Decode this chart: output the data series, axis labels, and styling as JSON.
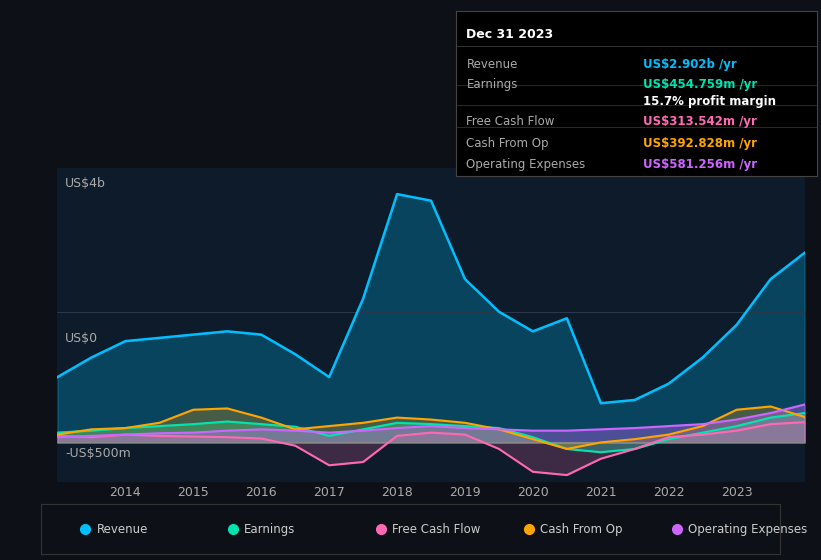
{
  "bg_color": "#0d1117",
  "plot_bg_color": "#0d1b2a",
  "grid_color": "#2a3a4a",
  "text_color": "#aaaaaa",
  "title_color": "#ffffff",
  "years": [
    2013,
    2013.5,
    2014,
    2014.5,
    2015,
    2015.5,
    2016,
    2016.5,
    2017,
    2017.5,
    2018,
    2018.5,
    2019,
    2019.5,
    2020,
    2020.5,
    2021,
    2021.5,
    2022,
    2022.5,
    2023,
    2023.5,
    2024
  ],
  "revenue": [
    1.0,
    1.3,
    1.55,
    1.6,
    1.65,
    1.7,
    1.65,
    1.35,
    1.0,
    2.2,
    3.8,
    3.7,
    2.5,
    2.0,
    1.7,
    1.9,
    0.6,
    0.65,
    0.9,
    1.3,
    1.8,
    2.5,
    2.902
  ],
  "earnings": [
    0.15,
    0.18,
    0.22,
    0.25,
    0.28,
    0.32,
    0.28,
    0.24,
    0.1,
    0.2,
    0.3,
    0.28,
    0.25,
    0.22,
    0.08,
    -0.1,
    -0.15,
    -0.1,
    0.05,
    0.15,
    0.25,
    0.38,
    0.45
  ],
  "free_cash_flow": [
    0.1,
    0.08,
    0.12,
    0.1,
    0.09,
    0.08,
    0.06,
    -0.05,
    -0.35,
    -0.3,
    0.1,
    0.15,
    0.12,
    -0.1,
    -0.45,
    -0.5,
    -0.25,
    -0.1,
    0.08,
    0.12,
    0.18,
    0.28,
    0.31
  ],
  "cash_from_op": [
    0.12,
    0.2,
    0.22,
    0.3,
    0.5,
    0.52,
    0.38,
    0.2,
    0.25,
    0.3,
    0.38,
    0.35,
    0.3,
    0.2,
    0.05,
    -0.1,
    0.0,
    0.05,
    0.12,
    0.25,
    0.5,
    0.55,
    0.39
  ],
  "operating_expenses": [
    0.08,
    0.1,
    0.12,
    0.14,
    0.15,
    0.18,
    0.2,
    0.18,
    0.15,
    0.18,
    0.22,
    0.25,
    0.22,
    0.2,
    0.18,
    0.18,
    0.2,
    0.22,
    0.25,
    0.28,
    0.35,
    0.45,
    0.58
  ],
  "revenue_color": "#00bfff",
  "earnings_color": "#00e5b0",
  "free_cash_flow_color": "#ff69b4",
  "cash_from_op_color": "#ffa500",
  "operating_expenses_color": "#cc66ff",
  "ylim_min": -0.6,
  "ylim_max": 4.2,
  "ylabel_top": "US$4b",
  "ylabel_zero": "US$0",
  "ylabel_neg": "-US$500m",
  "x_ticks": [
    2014,
    2015,
    2016,
    2017,
    2018,
    2019,
    2020,
    2021,
    2022,
    2023
  ],
  "x_labels": [
    "2014",
    "2015",
    "2016",
    "2017",
    "2018",
    "2019",
    "2020",
    "2021",
    "2022",
    "2023"
  ],
  "info_box": {
    "title": "Dec 31 2023",
    "rows": [
      {
        "label": "Revenue",
        "value": "US$2.902b /yr",
        "value_color": "#00bfff"
      },
      {
        "label": "Earnings",
        "value": "US$454.759m /yr",
        "value_color": "#00e5b0"
      },
      {
        "label": "",
        "value": "15.7% profit margin",
        "value_color": "#ffffff"
      },
      {
        "label": "Free Cash Flow",
        "value": "US$313.542m /yr",
        "value_color": "#ff69b4"
      },
      {
        "label": "Cash From Op",
        "value": "US$392.828m /yr",
        "value_color": "#ffa500"
      },
      {
        "label": "Operating Expenses",
        "value": "US$581.256m /yr",
        "value_color": "#cc66ff"
      }
    ],
    "bg": "#000000",
    "border": "#444444",
    "label_color": "#aaaaaa",
    "title_color": "#ffffff"
  },
  "legend": [
    {
      "label": "Revenue",
      "color": "#00bfff"
    },
    {
      "label": "Earnings",
      "color": "#00e5b0"
    },
    {
      "label": "Free Cash Flow",
      "color": "#ff69b4"
    },
    {
      "label": "Cash From Op",
      "color": "#ffa500"
    },
    {
      "label": "Operating Expenses",
      "color": "#cc66ff"
    }
  ]
}
